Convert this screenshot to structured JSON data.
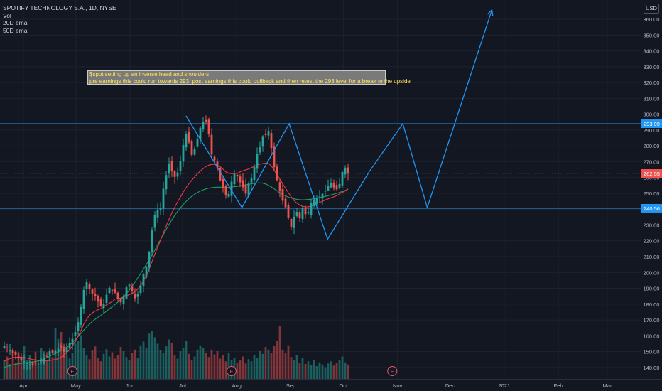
{
  "header": {
    "title": "SPOTIFY TECHNOLOGY S.A., 1D, NYSE",
    "indicators": [
      "Vol",
      "20D ema",
      "50D ema"
    ],
    "currency": "USD"
  },
  "annotation": {
    "line1": "$spot setting up an inverse head and shoulders",
    "line2": "pre earnings this could run towards 293. post earnings this could pullback and then retest the 293 level for a break to the upside"
  },
  "colors": {
    "background": "#131722",
    "up": "#26a69a",
    "down": "#ef5350",
    "ema20": "#f23645",
    "ema50": "#1e9e5a",
    "drawing": "#2196f3",
    "axis_text": "#b2b5be"
  },
  "chart_data": {
    "type": "candlestick",
    "ylim": [
      135,
      369
    ],
    "yticks": [
      140,
      150,
      160,
      170,
      180,
      190,
      200,
      210,
      220,
      230,
      240,
      250,
      260,
      270,
      280,
      290,
      300,
      310,
      320,
      330,
      340,
      350,
      360
    ],
    "price_markers": [
      {
        "label": "293.99",
        "value": 293.99,
        "color": "#2196f3"
      },
      {
        "label": "262.55",
        "value": 262.55,
        "color": "#ef5350"
      },
      {
        "label": "240.56",
        "value": 240.56,
        "color": "#2196f3"
      }
    ],
    "horizontal_lines": [
      293.99,
      240.56
    ],
    "x_ticks": [
      {
        "label": "Apr",
        "date": "2020-04-01"
      },
      {
        "label": "May",
        "date": "2020-05-01"
      },
      {
        "label": "Jun",
        "date": "2020-06-01"
      },
      {
        "label": "Jul",
        "date": "2020-07-01"
      },
      {
        "label": "Aug",
        "date": "2020-08-01"
      },
      {
        "label": "Sep",
        "date": "2020-09-01"
      },
      {
        "label": "Oct",
        "date": "2020-10-01"
      },
      {
        "label": "Nov",
        "date": "2020-11-01"
      },
      {
        "label": "Dec",
        "date": "2020-12-01"
      },
      {
        "label": "2021",
        "date": "2021-01-01"
      },
      {
        "label": "Feb",
        "date": "2021-02-01"
      },
      {
        "label": "Mar",
        "date": "2021-03-01"
      }
    ],
    "earnings": [
      {
        "label": "E",
        "date": "2020-04-29"
      },
      {
        "label": "E",
        "date": "2020-07-29"
      },
      {
        "label": "E",
        "date": "2020-10-29"
      }
    ],
    "pattern_path": [
      {
        "date": "2020-07-03",
        "value": 299
      },
      {
        "date": "2020-08-04",
        "value": 241
      },
      {
        "date": "2020-08-31",
        "value": 294
      },
      {
        "date": "2020-09-22",
        "value": 221
      },
      {
        "date": "2020-10-16",
        "value": 264
      },
      {
        "date": "2020-11-04",
        "value": 294
      },
      {
        "date": "2020-11-18",
        "value": 241
      },
      {
        "date": "2020-12-25",
        "value": 366
      }
    ],
    "series": [
      {
        "name": "price"
      },
      {
        "name": "Vol"
      },
      {
        "name": "20D ema"
      },
      {
        "name": "50D ema"
      }
    ],
    "closes": [
      153.5,
      152.2,
      150.8,
      149.3,
      147.6,
      146.2,
      144.9,
      143.8,
      142.6,
      141.9,
      141.4,
      142.4,
      143.1,
      144.3,
      145.9,
      147.2,
      150.1,
      148.9,
      150.4,
      151.9,
      152.7,
      149.8,
      152.9,
      155.6,
      158.1,
      162.4,
      168.6,
      178.2,
      188.9,
      194.2,
      189.5,
      186.5,
      185.1,
      181.6,
      178.8,
      180.2,
      185.9,
      190.3,
      188.6,
      187.2,
      183.2,
      181.1,
      184.7,
      190.6,
      192.3,
      188.2,
      183.7,
      186.3,
      191.9,
      198.8,
      203.7,
      213.1,
      226.8,
      236.1,
      239.4,
      240.3,
      252.9,
      261.5,
      268.5,
      264.2,
      260.4,
      263.2,
      270.3,
      280.6,
      287.4,
      282.2,
      274.3,
      277.8,
      284.6,
      291.4,
      294.9,
      295.4,
      287.3,
      274.5,
      270.9,
      266.3,
      258.2,
      253.3,
      248.8,
      249.6,
      257.4,
      262.2,
      260.7,
      256.9,
      253.8,
      249.8,
      256.1,
      259.3,
      266.7,
      274.8,
      279.2,
      285.7,
      287.1,
      289.4,
      278.6,
      266.5,
      258.3,
      251.8,
      245.3,
      241.2,
      234.7,
      228.6,
      235.2,
      238.3,
      234.4,
      240.6,
      236.8,
      238.2,
      243.7,
      245.5,
      247.3,
      247.9,
      249.6,
      251.6,
      254.5,
      256.3,
      253.7,
      252.5,
      255.9,
      263.5,
      266.2,
      262.6
    ],
    "ema20": [
      144.0,
      144.9,
      145.6,
      146.1,
      146.4,
      146.5,
      146.5,
      146.2,
      145.9,
      145.5,
      145.0,
      144.7,
      144.6,
      144.3,
      144.3,
      144.3,
      144.4,
      144.7,
      145.0,
      145.5,
      146.5,
      147.6,
      149.4,
      151.1,
      153.6,
      156.6,
      159.7,
      163.4,
      167.5,
      170.4,
      173.0,
      174.5,
      175.6,
      176.5,
      177.2,
      178.2,
      179.6,
      180.6,
      181.6,
      183.2,
      183.4,
      183.9,
      184.5,
      185.3,
      186.0,
      186.8,
      187.9,
      189.5,
      191.7,
      194.6,
      198.2,
      202.2,
      206.9,
      211.6,
      216.1,
      220.4,
      224.9,
      229.4,
      233.6,
      237.6,
      241.2,
      244.6,
      247.7,
      250.8,
      253.6,
      256.1,
      258.3,
      260.4,
      262.4,
      264.1,
      265.6,
      266.9,
      267.8,
      268.3,
      268.3,
      267.8,
      266.8,
      265.3,
      263.5,
      262.8,
      262.4,
      262.5,
      262.7,
      263.6,
      264.3,
      264.8,
      265.4,
      266.3,
      267.1,
      268.0,
      268.4,
      268.8,
      269.1,
      268.8,
      267.4,
      264.6,
      261.8,
      258.9,
      256.0,
      253.2,
      250.4,
      247.8,
      245.5,
      243.8,
      242.6,
      241.8,
      241.4,
      241.5,
      242.0,
      242.7,
      243.4,
      244.2,
      245.0,
      245.8,
      246.5,
      247.2,
      247.8,
      248.5,
      249.6,
      250.6,
      251.5,
      252.8
    ],
    "ema50": [
      140.0,
      140.6,
      141.2,
      141.6,
      142.0,
      142.3,
      142.6,
      142.8,
      143.0,
      143.2,
      143.4,
      143.7,
      144.1,
      144.6,
      145.3,
      146.1,
      147.1,
      148.0,
      148.9,
      149.8,
      150.6,
      151.6,
      152.8,
      154.2,
      155.8,
      157.6,
      159.5,
      161.5,
      163.6,
      165.6,
      167.4,
      169.1,
      170.5,
      171.8,
      172.9,
      174.2,
      175.6,
      177.0,
      178.3,
      179.8,
      181.3,
      182.9,
      184.7,
      186.6,
      188.8,
      191.3,
      193.9,
      196.6,
      199.3,
      202.1,
      205.0,
      208.0,
      211.0,
      214.2,
      217.5,
      220.8,
      224.0,
      227.2,
      230.3,
      233.3,
      236.1,
      238.5,
      240.8,
      242.9,
      244.9,
      246.6,
      248.1,
      249.4,
      250.5,
      251.4,
      252.2,
      252.8,
      253.3,
      253.6,
      253.8,
      253.9,
      253.9,
      253.8,
      253.6,
      253.8,
      254.0,
      254.2,
      254.4,
      254.8,
      255.1,
      255.4,
      255.7,
      256.0,
      256.3,
      256.6,
      256.6,
      256.4,
      255.9,
      255.1,
      254.0,
      252.8,
      251.6,
      250.4,
      249.3,
      248.4,
      247.6,
      247.0,
      246.5,
      246.2,
      246.0,
      245.9,
      246.0,
      246.1,
      246.3,
      246.6,
      246.9,
      247.2,
      247.6,
      248.0,
      248.5,
      249.0,
      249.5,
      250.0,
      250.6,
      251.2,
      251.8,
      252.5
    ],
    "volumes": [
      0.35,
      0.42,
      0.28,
      0.55,
      0.31,
      0.48,
      0.39,
      0.62,
      0.27,
      0.44,
      0.33,
      0.51,
      0.29,
      0.58,
      0.47,
      0.36,
      0.52,
      0.41,
      0.95,
      0.75,
      0.88,
      0.61,
      0.45,
      0.38,
      0.49,
      0.66,
      0.72,
      0.82,
      0.58,
      0.44,
      0.37,
      0.53,
      0.61,
      0.4,
      0.33,
      0.47,
      0.56,
      0.42,
      0.5,
      0.38,
      0.45,
      0.6,
      0.52,
      0.41,
      0.36,
      0.48,
      0.55,
      0.39,
      0.63,
      0.7,
      0.58,
      0.85,
      0.9,
      0.78,
      0.66,
      0.54,
      0.49,
      0.62,
      0.74,
      0.68,
      0.45,
      0.38,
      0.52,
      0.58,
      0.71,
      0.47,
      0.36,
      0.42,
      0.55,
      0.63,
      0.58,
      0.49,
      0.41,
      0.55,
      0.46,
      0.52,
      0.38,
      0.44,
      0.33,
      0.48,
      0.35,
      0.4,
      0.31,
      0.36,
      0.42,
      0.29,
      0.37,
      0.33,
      0.45,
      0.39,
      0.52,
      0.47,
      0.6,
      0.55,
      0.48,
      0.62,
      0.71,
      1.0,
      0.55,
      0.48,
      0.63,
      0.41,
      0.36,
      0.45,
      0.3,
      0.39,
      0.28,
      0.33,
      0.26,
      0.35,
      0.24,
      0.31,
      0.27,
      0.22,
      0.29,
      0.33,
      0.25,
      0.3,
      0.36,
      0.42,
      0.31,
      0.27
    ]
  }
}
